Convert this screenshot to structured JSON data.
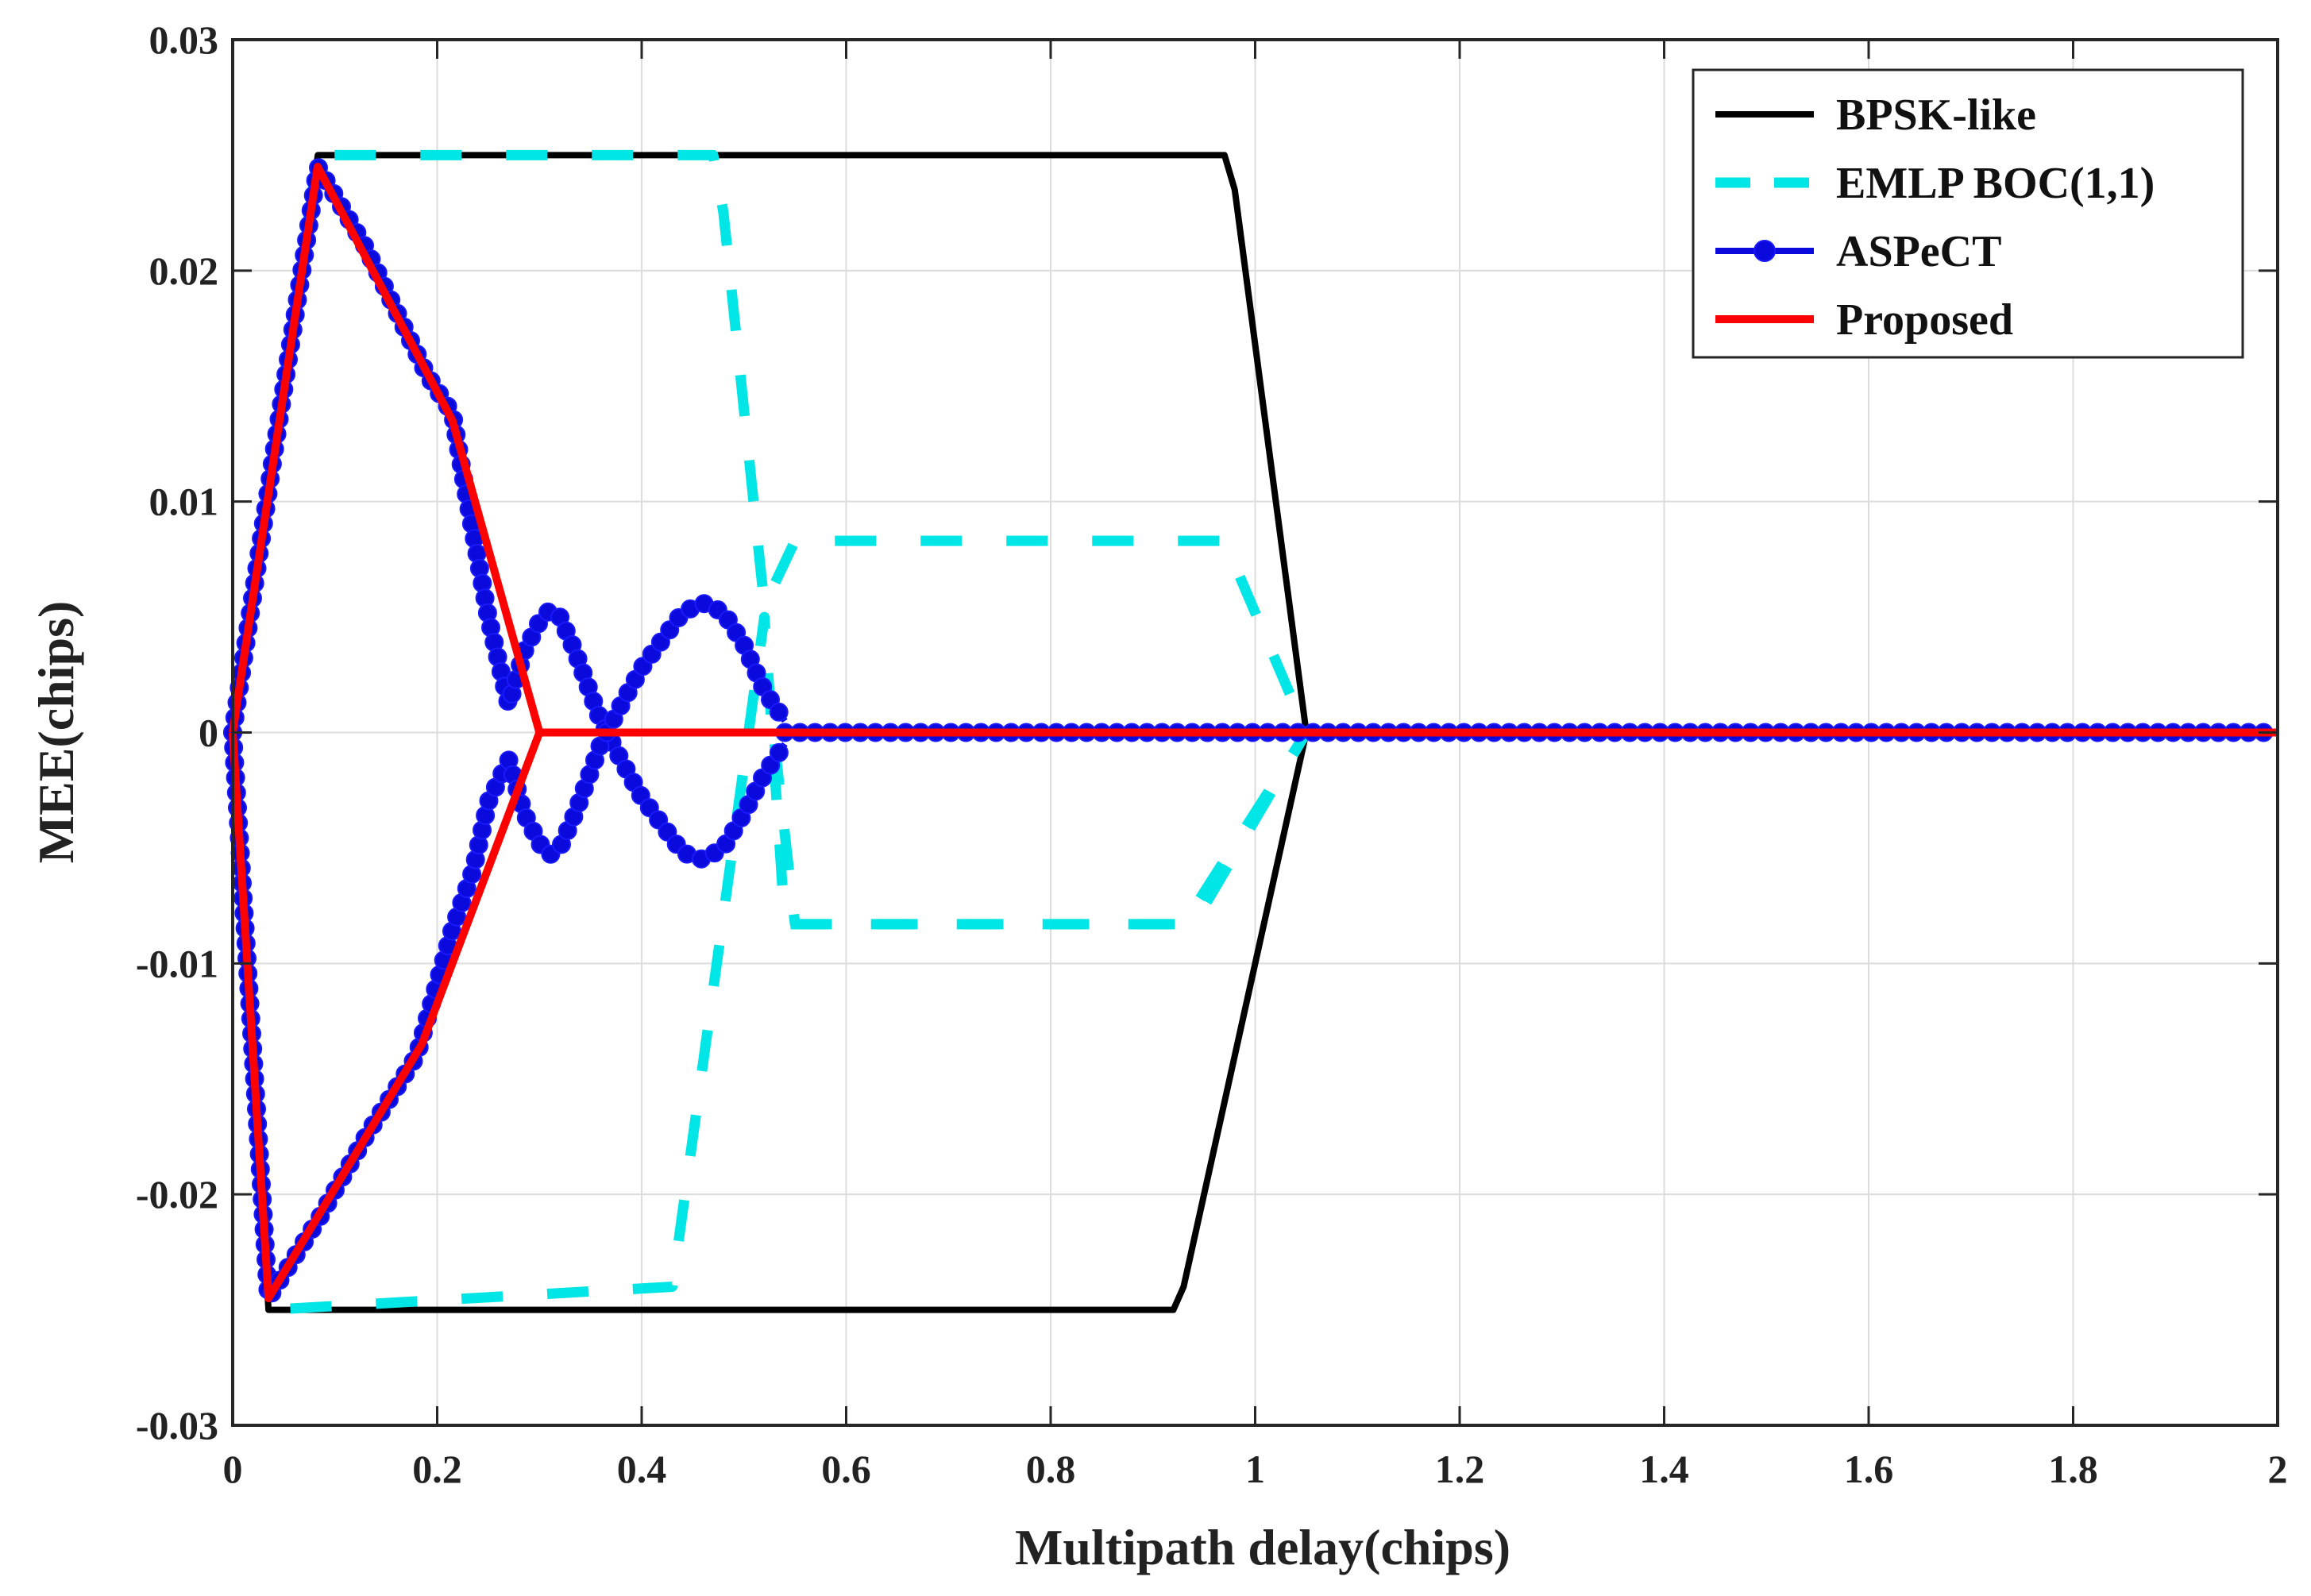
{
  "chart_data": {
    "type": "line",
    "title": "",
    "xlabel": "Multipath delay(chips)",
    "ylabel": "MEE(chips)",
    "xlim": [
      0,
      2
    ],
    "ylim": [
      -0.03,
      0.03
    ],
    "grid": true,
    "legend_position": "top-right",
    "x_ticks": [
      0,
      0.2,
      0.4,
      0.6,
      0.8,
      1.0,
      1.2,
      1.4,
      1.6,
      1.8,
      2.0
    ],
    "x_tick_labels": [
      "0",
      "0.2",
      "0.4",
      "0.6",
      "0.8",
      "1",
      "1.2",
      "1.4",
      "1.6",
      "1.8",
      "2"
    ],
    "y_ticks": [
      -0.03,
      -0.02,
      -0.01,
      0,
      0.01,
      0.02,
      0.03
    ],
    "y_tick_labels": [
      "-0.03",
      "-0.02",
      "-0.01",
      "0",
      "0.01",
      "0.02",
      "0.03"
    ],
    "series": [
      {
        "name": "BPSK-like",
        "color": "#000000",
        "style": "solid",
        "paths": [
          {
            "x": [
              0,
              0.0833,
              0.97,
              0.98,
              1.05,
              2.0
            ],
            "y": [
              0,
              0.025,
              0.025,
              0.0235,
              0,
              0
            ]
          },
          {
            "x": [
              0,
              0.035,
              0.92,
              0.93,
              1.05
            ],
            "y": [
              0,
              -0.025,
              -0.025,
              -0.024,
              0
            ]
          }
        ]
      },
      {
        "name": "EMLP BOC(1,1)",
        "color": "#00e6e6",
        "style": "dashed",
        "paths": [
          {
            "x": [
              0,
              0.0833,
              0.47,
              0.48,
              0.52,
              0.55,
              0.97,
              1.05
            ],
            "y": [
              0,
              0.025,
              0.025,
              0.0225,
              0.0055,
              0.0083,
              0.0083,
              0
            ]
          },
          {
            "x": [
              0,
              0.035,
              0.43,
              0.52,
              0.54,
              0.94,
              1.05
            ],
            "y": [
              0,
              -0.025,
              -0.024,
              0.005,
              -0.0083,
              -0.0083,
              0
            ]
          },
          {
            "x": [
              0.53,
              0.55,
              0.93,
              1.05
            ],
            "y": [
              -0.0005,
              -0.0083,
              -0.0083,
              0
            ]
          }
        ]
      },
      {
        "name": "ASPeCT",
        "color": "#0a0adc",
        "style": "solid-marker",
        "paths": [
          {
            "x": [
              0,
              0.04,
              0.0833,
              0.13,
              0.19,
              0.215,
              0.225,
              0.25,
              0.27,
              0.285,
              0.3,
              0.31,
              0.32,
              0.335,
              0.36,
              0.38,
              0.4,
              0.44,
              0.46,
              0.48,
              0.5,
              0.52,
              0.54
            ],
            "y": [
              0,
              0.012,
              0.0245,
              0.021,
              0.0155,
              0.0138,
              0.0112,
              0.005,
              0.0012,
              0.0035,
              0.0048,
              0.0053,
              0.005,
              0.0035,
              0.0005,
              -0.0012,
              -0.0028,
              -0.0052,
              -0.0055,
              -0.005,
              -0.0035,
              -0.0018,
              -0.0005
            ]
          },
          {
            "x": [
              0,
              0.035,
              0.085,
              0.13,
              0.18,
              0.215,
              0.235,
              0.25,
              0.27,
              0.285,
              0.3,
              0.31,
              0.32,
              0.335,
              0.36,
              0.38,
              0.4,
              0.44,
              0.46,
              0.48,
              0.5,
              0.52,
              0.54
            ],
            "y": [
              0,
              -0.0245,
              -0.021,
              -0.0175,
              -0.014,
              -0.0085,
              -0.006,
              -0.003,
              -0.0012,
              -0.0035,
              -0.0048,
              -0.0053,
              -0.005,
              -0.0035,
              -0.0005,
              0.0012,
              0.0028,
              0.0052,
              0.0056,
              0.0052,
              0.0038,
              0.0018,
              0.0005
            ]
          },
          {
            "x": [
              0.54,
              2.0
            ],
            "y": [
              0,
              0
            ]
          }
        ]
      },
      {
        "name": "Proposed",
        "color": "#ff0000",
        "style": "solid",
        "paths": [
          {
            "x": [
              0,
              0.083,
              0.215,
              0.3,
              2.0
            ],
            "y": [
              0,
              0.0245,
              0.0135,
              0,
              0
            ]
          },
          {
            "x": [
              0,
              0.035,
              0.185,
              0.3
            ],
            "y": [
              0,
              -0.0245,
              -0.0135,
              0
            ]
          }
        ]
      }
    ]
  }
}
